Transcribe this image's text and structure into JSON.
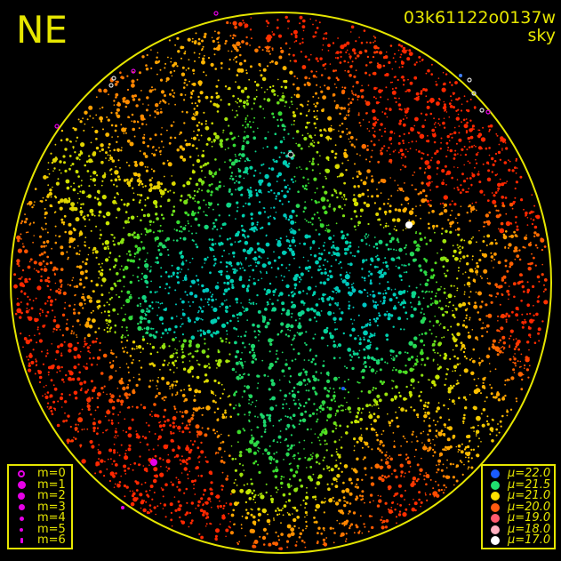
{
  "header": {
    "direction": "NE",
    "frame_id": "03k61122o0137w",
    "frame_type": "sky"
  },
  "colors": {
    "frame": "#e6e600",
    "magnitude_marker": "#e600e6"
  },
  "chart_data": {
    "type": "scatter",
    "title": "",
    "grid": false,
    "magnitude_legend": {
      "placement": "bottom-left",
      "entries": [
        {
          "label": "m=0",
          "style": "open"
        },
        {
          "label": "m=1",
          "style": "filled"
        },
        {
          "label": "m=2",
          "style": "filled"
        },
        {
          "label": "m=3",
          "style": "filled"
        },
        {
          "label": "m=4",
          "style": "filled"
        },
        {
          "label": "m=5",
          "style": "filled"
        },
        {
          "label": "m=6",
          "style": "filled"
        }
      ]
    },
    "brightness_legend": {
      "placement": "bottom-right",
      "entries": [
        {
          "label": "μ=22.0",
          "color": "#1a5cff"
        },
        {
          "label": "μ=21.5",
          "color": "#20e070"
        },
        {
          "label": "μ=21.0",
          "color": "#ffe000"
        },
        {
          "label": "μ=20.0",
          "color": "#ff5a10"
        },
        {
          "label": "μ=19.0",
          "color": "#ff5a6e"
        },
        {
          "label": "μ=18.0",
          "color": "#ffb0c0"
        },
        {
          "label": "μ=17.0",
          "color": "#ffffff"
        }
      ]
    }
  }
}
